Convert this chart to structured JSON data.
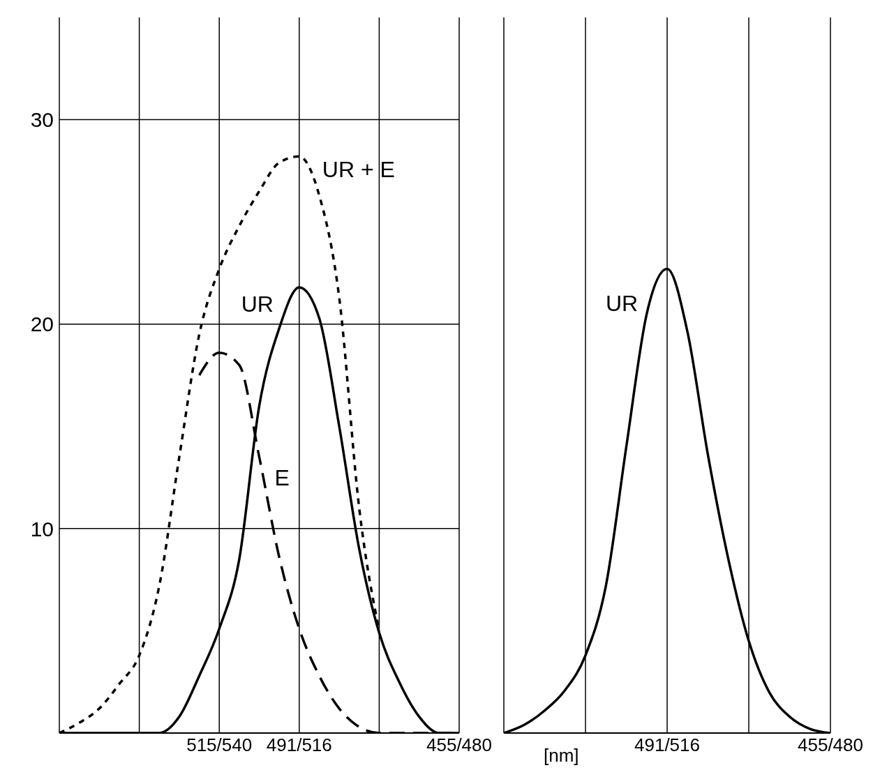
{
  "chart_data": [
    {
      "type": "line",
      "categories": [
        null,
        null,
        null,
        null,
        null,
        null,
        null,
        null,
        "515/540",
        null,
        null,
        null,
        "491/516",
        null,
        null,
        null,
        null,
        null,
        null,
        null,
        "455/480"
      ],
      "ylim": [
        0,
        35
      ],
      "yticks": [
        10,
        20,
        30
      ],
      "grid": true,
      "series": [
        {
          "name": "UR + E",
          "color": "#000000",
          "line_style": "dotted",
          "values": [
            0,
            0.5,
            1.2,
            2.4,
            3.8,
            7.2,
            13.5,
            19.5,
            22.7,
            24.8,
            26.5,
            27.9,
            28.2,
            26.3,
            21.3,
            11,
            5,
            null,
            null,
            null,
            null
          ]
        },
        {
          "name": "UR",
          "color": "#000000",
          "line_style": "solid",
          "values": [
            0,
            0,
            0,
            0,
            0,
            0,
            0.8,
            2.8,
            5.1,
            8.5,
            16,
            19.8,
            21.8,
            20.3,
            15,
            9,
            4.9,
            2.5,
            0.8,
            0,
            0
          ]
        },
        {
          "name": "E",
          "color": "#000000",
          "line_style": "dashed",
          "values": [
            null,
            null,
            null,
            null,
            null,
            null,
            null,
            17.5,
            18.6,
            18,
            13.5,
            8.6,
            5.1,
            2.8,
            1.2,
            0.3,
            0,
            0,
            0,
            0,
            0
          ]
        }
      ]
    },
    {
      "type": "line",
      "xlabel": "[nm]",
      "categories": [
        null,
        null,
        null,
        null,
        null,
        null,
        null,
        null,
        "491/516",
        null,
        null,
        null,
        null,
        null,
        null,
        null,
        "455/480"
      ],
      "ylim": [
        0,
        35
      ],
      "yticks": [
        10,
        20,
        30
      ],
      "grid": true,
      "tick_labels": "x",
      "series": [
        {
          "name": "UR",
          "color": "#000000",
          "line_style": "solid",
          "values": [
            0,
            0.4,
            1.1,
            2.1,
            3.8,
            7.2,
            14,
            20.5,
            22.7,
            19.6,
            13.6,
            8.5,
            4.5,
            2,
            0.8,
            0.2,
            0
          ]
        }
      ]
    }
  ]
}
